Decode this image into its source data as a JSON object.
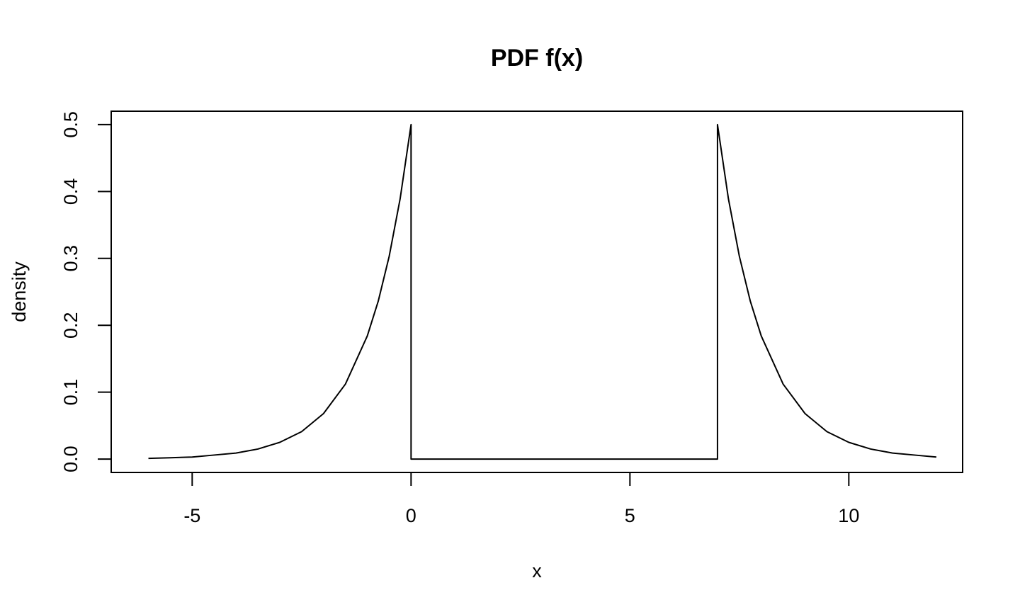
{
  "chart_data": {
    "type": "line",
    "title": "PDF f(x)",
    "xlabel": "x",
    "ylabel": "density",
    "xlim": [
      -6.85,
      12.6
    ],
    "ylim": [
      -0.02,
      0.52
    ],
    "x_ticks": [
      -5,
      0,
      5,
      10
    ],
    "y_ticks": [
      0.0,
      0.1,
      0.2,
      0.3,
      0.4,
      0.5
    ],
    "x_tick_labels": [
      "-5",
      "0",
      "5",
      "10"
    ],
    "y_tick_labels": [
      "0.0",
      "0.1",
      "0.2",
      "0.3",
      "0.4",
      "0.5"
    ],
    "grid": false,
    "legend": "none",
    "line_color": "#000000",
    "series": [
      {
        "x": [
          -6,
          -5.5,
          -5,
          -4.5,
          -4,
          -3.5,
          -3,
          -2.5,
          -2,
          -1.5,
          -1,
          -0.75,
          -0.5,
          -0.25,
          0,
          0,
          7,
          7,
          7.25,
          7.5,
          7.75,
          8,
          8.5,
          9,
          9.5,
          10,
          10.5,
          11,
          11.5,
          12
        ],
        "y": [
          0.001,
          0.002,
          0.003,
          0.006,
          0.009,
          0.015,
          0.025,
          0.041,
          0.068,
          0.112,
          0.184,
          0.236,
          0.303,
          0.389,
          0.5,
          0.0,
          0.0,
          0.5,
          0.389,
          0.303,
          0.236,
          0.184,
          0.112,
          0.068,
          0.041,
          0.025,
          0.015,
          0.009,
          0.006,
          0.003
        ]
      }
    ]
  }
}
